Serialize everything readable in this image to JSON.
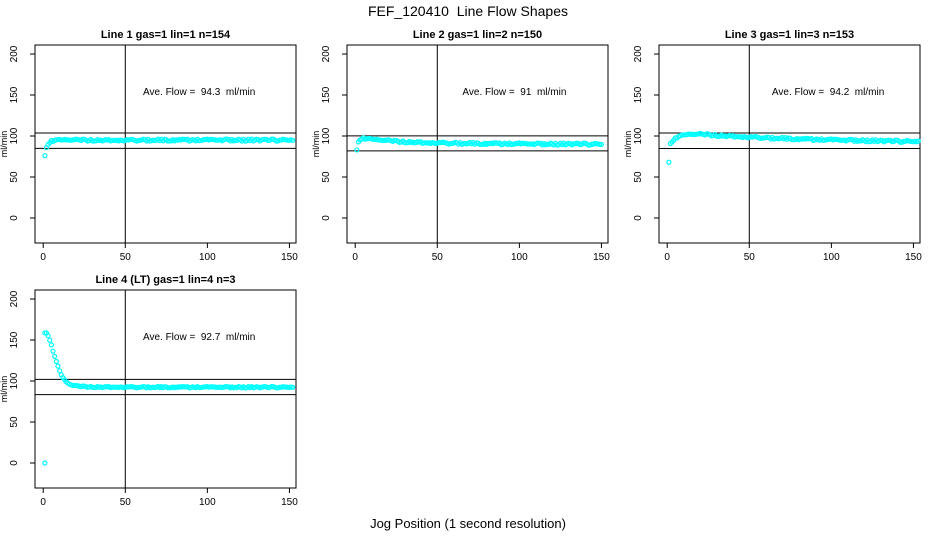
{
  "page": {
    "title": "FEF_120410  Line Flow Shapes",
    "xlabel": "Jog Position (1 second resolution)"
  },
  "style": {
    "background": "#ffffff",
    "point_color": "#00ffff",
    "line_color": "#000000",
    "text_color": "#000000"
  },
  "chart_data": [
    {
      "type": "scatter",
      "title": "Line 1 gas=1 lin=1 n=154",
      "annotation": "Ave. Flow =  94.3  ml/min",
      "ave_flow_ml_min": 94.3,
      "n": 154,
      "ylabel": "ml/min",
      "xlim": [
        -5,
        154
      ],
      "ylim": [
        -30.5,
        211
      ],
      "xticks": [
        0,
        50,
        100,
        150
      ],
      "yticks": [
        0,
        50,
        100,
        150,
        200
      ],
      "vline_x": 50,
      "hlines": [
        103.7,
        84.9
      ],
      "annotation_xy": [
        95,
        150
      ],
      "outlier_points": [
        [
          1,
          76
        ]
      ],
      "band": {
        "x_start": 2,
        "x_end": 152,
        "jitter": 1.2,
        "breakpoints": [
          [
            2,
            85
          ],
          [
            3,
            90
          ],
          [
            4,
            92.5
          ],
          [
            5,
            93.7
          ],
          [
            7,
            94.6
          ],
          [
            10,
            95
          ],
          [
            152,
            95
          ]
        ]
      },
      "grid": "r0c0"
    },
    {
      "type": "scatter",
      "title": "Line 2 gas=1 lin=2 n=150",
      "annotation": "Ave. Flow =  91  ml/min",
      "ave_flow_ml_min": 91,
      "n": 150,
      "ylabel": "ml/min",
      "xlim": [
        -5,
        154
      ],
      "ylim": [
        -30.5,
        211
      ],
      "xticks": [
        0,
        50,
        100,
        150
      ],
      "yticks": [
        0,
        50,
        100,
        150,
        200
      ],
      "vline_x": 50,
      "hlines": [
        100.1,
        81.9
      ],
      "annotation_xy": [
        97,
        150
      ],
      "outlier_points": [
        [
          1,
          83
        ]
      ],
      "band": {
        "x_start": 2,
        "x_end": 150,
        "jitter": 1.2,
        "breakpoints": [
          [
            2,
            92
          ],
          [
            3,
            95.5
          ],
          [
            4,
            96.8
          ],
          [
            6,
            97
          ],
          [
            10,
            95.8
          ],
          [
            15,
            94.8
          ],
          [
            20,
            94.2
          ],
          [
            30,
            93
          ],
          [
            40,
            92.2
          ],
          [
            60,
            91.2
          ],
          [
            80,
            90.7
          ],
          [
            100,
            90.3
          ],
          [
            150,
            90
          ]
        ]
      },
      "grid": "r0c1"
    },
    {
      "type": "scatter",
      "title": "Line 3 gas=1 lin=3 n=153",
      "annotation": "Ave. Flow =  94.2  ml/min",
      "ave_flow_ml_min": 94.2,
      "n": 153,
      "ylabel": "ml/min",
      "xlim": [
        -5,
        154
      ],
      "ylim": [
        -30.5,
        211
      ],
      "xticks": [
        0,
        50,
        100,
        150
      ],
      "yticks": [
        0,
        50,
        100,
        150,
        200
      ],
      "vline_x": 50,
      "hlines": [
        103.6,
        84.8
      ],
      "annotation_xy": [
        98,
        150
      ],
      "outlier_points": [
        [
          1,
          68
        ]
      ],
      "band": {
        "x_start": 2,
        "x_end": 153,
        "jitter": 1.2,
        "breakpoints": [
          [
            2,
            90
          ],
          [
            3,
            93
          ],
          [
            4,
            95.5
          ],
          [
            6,
            98.5
          ],
          [
            8,
            100
          ],
          [
            12,
            101.5
          ],
          [
            18,
            102
          ],
          [
            25,
            101.5
          ],
          [
            40,
            99.8
          ],
          [
            60,
            97.8
          ],
          [
            80,
            96.3
          ],
          [
            100,
            95.2
          ],
          [
            120,
            94.3
          ],
          [
            153,
            93.2
          ]
        ]
      },
      "grid": "r0c2"
    },
    {
      "type": "scatter",
      "title": "Line 4 (LT) gas=1 lin=4 n=3",
      "annotation": "Ave. Flow =  92.7  ml/min",
      "ave_flow_ml_min": 92.7,
      "n": 3,
      "ylabel": "ml/min",
      "xlim": [
        -5,
        154
      ],
      "ylim": [
        -30.5,
        211
      ],
      "xticks": [
        0,
        50,
        100,
        150
      ],
      "yticks": [
        0,
        50,
        100,
        150,
        200
      ],
      "vline_x": 50,
      "hlines": [
        102.0,
        83.4
      ],
      "annotation_xy": [
        95,
        150
      ],
      "outlier_points": [
        [
          1,
          0
        ]
      ],
      "band": {
        "x_start": 1,
        "x_end": 152,
        "jitter": 0.8,
        "breakpoints": [
          [
            1,
            158
          ],
          [
            2,
            158
          ],
          [
            3,
            155.5
          ],
          [
            4,
            150
          ],
          [
            5,
            143.5
          ],
          [
            6,
            137
          ],
          [
            7,
            130
          ],
          [
            8,
            123.5
          ],
          [
            9,
            117.5
          ],
          [
            10,
            112
          ],
          [
            11,
            107.5
          ],
          [
            12,
            104
          ],
          [
            13,
            101
          ],
          [
            14,
            98.8
          ],
          [
            15,
            97.2
          ],
          [
            16,
            96
          ],
          [
            18,
            94.5
          ],
          [
            20,
            93.8
          ],
          [
            24,
            93.2
          ],
          [
            30,
            92.9
          ],
          [
            40,
            92.7
          ],
          [
            60,
            92.5
          ],
          [
            100,
            92.4
          ],
          [
            152,
            92.4
          ]
        ]
      },
      "grid": "r1c0"
    }
  ]
}
